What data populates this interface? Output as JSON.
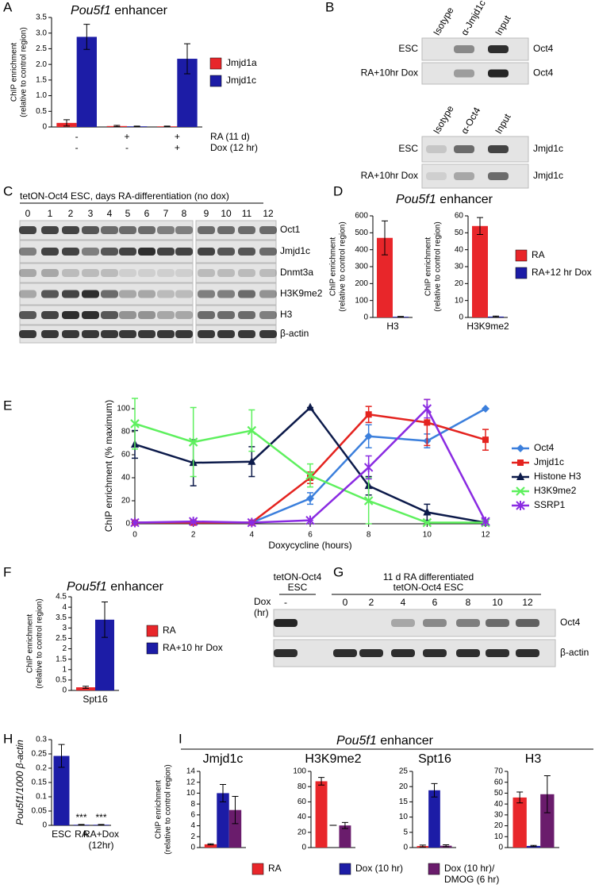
{
  "panel_letters": [
    "A",
    "B",
    "C",
    "D",
    "E",
    "F",
    "G",
    "H",
    "I"
  ],
  "blot_b1": {
    "lanes": [
      "Isotype",
      "α-Jmjd1c",
      "Input"
    ],
    "rows": [
      "ESC",
      "RA+10hr Dox"
    ],
    "proteins": [
      "Oct4",
      "Oct4"
    ]
  },
  "blot_b2": {
    "lanes": [
      "Isotype",
      "α-Oct4",
      "Input"
    ],
    "rows": [
      "ESC",
      "RA+10hr Dox"
    ],
    "proteins": [
      "Jmjd1c",
      "Jmjd1c"
    ]
  },
  "blot_c": {
    "title": "tetON-Oct4 ESC, days RA-differentiation (no dox)",
    "lanes": [
      "0",
      "1",
      "2",
      "3",
      "4",
      "5",
      "6",
      "7",
      "8",
      "9",
      "10",
      "11",
      "12"
    ],
    "proteins": [
      "Oct1",
      "Jmjd1c",
      "Dnmt3a",
      "H3K9me2",
      "H3",
      "β-actin"
    ]
  },
  "blot_g": {
    "header_left": "tetON-Oct4",
    "header_left_sub": "ESC",
    "header_right": "11 d RA differentiated",
    "header_right_sub": "tetON-Oct4 ESC",
    "dox_label": "Dox",
    "dox_unit": "(hr)",
    "lanes": [
      "-",
      "0",
      "2",
      "4",
      "6",
      "8",
      "10",
      "12"
    ],
    "proteins": [
      "Oct4",
      "β-actin"
    ]
  },
  "chart_data": [
    {
      "type": "bar",
      "title": "Pou5f1 enhancer",
      "ylabel": [
        "ChIP enrichment",
        "(relative to control region)"
      ],
      "categories": [
        null,
        null,
        null
      ],
      "conditions": [
        {
          "label": "RA (11 d)",
          "signs": [
            "-",
            "+",
            "+"
          ]
        },
        {
          "label": "Dox (12 hr)",
          "signs": [
            "-",
            "-",
            "+"
          ]
        }
      ],
      "series": [
        {
          "name": "Jmjd1a",
          "color": "#e8262a",
          "values": [
            0.13,
            0.03,
            0.02
          ],
          "errors": [
            0.1,
            0.02,
            0.01
          ]
        },
        {
          "name": "Jmjd1c",
          "color": "#1c1ca6",
          "values": [
            2.88,
            0.02,
            2.18
          ],
          "errors": [
            0.4,
            0.01,
            0.48
          ]
        }
      ],
      "ylim": [
        0,
        3.5
      ],
      "yticks": [
        0,
        0.5,
        {
          "value": 1,
          "label": "1.0"
        },
        1.5,
        {
          "value": 2,
          "label": "2.0"
        },
        2.5,
        {
          "value": 3,
          "label": "3.0"
        },
        3.5
      ]
    },
    {
      "type": "bar",
      "title": "Pou5f1 enhancer",
      "ylabel": [
        "ChIP enrichment",
        "(relative to control region)"
      ],
      "categories": [
        "H3"
      ],
      "series": [
        {
          "name": "RA",
          "color": "#e8262a",
          "values": [
            470
          ],
          "errors": [
            100
          ]
        },
        {
          "name": "RA+12 hr Dox",
          "color": "#1c1ca6",
          "values": [
            4
          ],
          "errors": [
            2
          ]
        }
      ],
      "ylim": [
        0,
        600
      ],
      "yticks": [
        0,
        100,
        200,
        300,
        400,
        500,
        600
      ]
    },
    {
      "type": "bar",
      "ylabel": [
        "ChIP enrichment",
        "(relative to control region)"
      ],
      "categories": [
        "H3K9me2"
      ],
      "series": [
        {
          "color": "#e8262a",
          "values": [
            54
          ],
          "errors": [
            5
          ]
        },
        {
          "color": "#1c1ca6",
          "values": [
            0.5
          ],
          "errors": [
            0.3
          ]
        }
      ],
      "ylim": [
        0,
        60
      ],
      "yticks": [
        0,
        10,
        20,
        30,
        40,
        50,
        60
      ]
    },
    {
      "type": "line",
      "ylabel": "ChIP enrichment (% maximum)",
      "xlabel": "Doxycycline (hours)",
      "x": [
        0,
        2,
        4,
        6,
        8,
        10,
        12
      ],
      "series": [
        {
          "name": "Oct4",
          "color": "#3b7fdc",
          "marker": "diamond",
          "values": [
            1,
            1,
            1,
            22,
            76,
            72,
            100
          ],
          "errors": [
            0,
            0,
            0,
            5,
            10,
            6,
            0
          ]
        },
        {
          "name": "Jmjd1c",
          "color": "#e4231f",
          "marker": "square",
          "values": [
            1,
            1,
            1,
            40,
            95,
            88,
            73
          ],
          "errors": [
            0,
            0,
            0,
            5,
            7,
            20,
            9
          ]
        },
        {
          "name": "Histone H3",
          "color": "#0c1a4a",
          "marker": "triangle",
          "values": [
            69,
            53,
            54,
            101,
            33,
            10,
            1
          ],
          "errors": [
            12,
            20,
            13,
            0,
            8,
            7,
            0
          ]
        },
        {
          "name": "H3K9me2",
          "color": "#5ef05e",
          "marker": "x",
          "values": [
            87,
            71,
            81,
            42,
            20,
            1,
            1
          ],
          "errors": [
            22,
            30,
            18,
            10,
            20,
            0,
            0
          ]
        },
        {
          "name": "SSRP1",
          "color": "#8a2be2",
          "marker": "star",
          "values": [
            1,
            2,
            1,
            3,
            49,
            100,
            2
          ],
          "errors": [
            0,
            0,
            0,
            0,
            10,
            8,
            0
          ]
        }
      ],
      "xlim": [
        0,
        12
      ],
      "xticks": [
        0,
        2,
        4,
        6,
        8,
        10,
        12
      ],
      "ylim": [
        0,
        100
      ],
      "yticks": [
        0,
        20,
        40,
        60,
        80,
        100
      ]
    },
    {
      "type": "bar",
      "title": "Pou5f1 enhancer",
      "ylabel": [
        "ChIP enrichment",
        "(relative to control region)"
      ],
      "categories": [
        "Spt16"
      ],
      "series": [
        {
          "name": "RA",
          "color": "#e8262a",
          "values": [
            0.15
          ],
          "errors": [
            0.05
          ]
        },
        {
          "name": "RA+10 hr Dox",
          "color": "#1c1ca6",
          "values": [
            3.4
          ],
          "errors": [
            0.85
          ]
        }
      ],
      "ylim": [
        0,
        4.5
      ],
      "yticks": [
        0,
        0.5,
        1,
        1.5,
        2,
        2.5,
        3,
        3.5,
        4,
        4.5
      ]
    },
    {
      "type": "bar",
      "ylabel": "Pou5f1/1000 β-actin",
      "categories": [
        "ESC",
        "RA",
        "RA+Dox\n(12hr)"
      ],
      "significance": [
        null,
        "***",
        "***"
      ],
      "series": [
        {
          "color": "#1c1ca6",
          "values": [
            0.243,
            0.002,
            0.002
          ],
          "errors": [
            0.04,
            0.001,
            0.001
          ]
        }
      ],
      "ylim": [
        0,
        0.3
      ],
      "yticks": [
        0,
        0.05,
        0.1,
        0.15,
        0.2,
        0.25,
        0.3
      ]
    },
    {
      "type": "bar",
      "title": "Pou5f1 enhancer",
      "subtitle": "Jmjd1c",
      "ylabel": [
        "ChIP enrichment",
        "(relative to control region)"
      ],
      "series": [
        {
          "name": "RA",
          "color": "#e8262a",
          "values": [
            0.6
          ],
          "errors": [
            0.1
          ]
        },
        {
          "name": "Dox (10 hr)",
          "color": "#1c1ca6",
          "values": [
            10
          ],
          "errors": [
            1.6
          ]
        },
        {
          "name": "Dox (10 hr)/\nDMOG (6 hr)",
          "color": "#6a1c6c",
          "values": [
            6.9
          ],
          "errors": [
            2.5
          ]
        }
      ],
      "ylim": [
        0,
        14
      ],
      "yticks": [
        0,
        2,
        4,
        6,
        8,
        10,
        12,
        14
      ]
    },
    {
      "type": "bar",
      "subtitle": "H3K9me2",
      "gap_label": "–",
      "series": [
        {
          "color": "#e8262a",
          "values": [
            87
          ],
          "errors": [
            5
          ]
        },
        {
          "color": "#1c1ca6",
          "values": [
            null
          ],
          "errors": [
            null
          ]
        },
        {
          "color": "#6a1c6c",
          "values": [
            29
          ],
          "errors": [
            4
          ]
        }
      ],
      "ylim": [
        0,
        100
      ],
      "yticks": [
        0,
        20,
        40,
        60,
        80,
        100
      ]
    },
    {
      "type": "bar",
      "subtitle": "Spt16",
      "series": [
        {
          "color": "#e8262a",
          "values": [
            0.5
          ],
          "errors": [
            0.3
          ]
        },
        {
          "color": "#1c1ca6",
          "values": [
            18.8
          ],
          "errors": [
            2.2
          ]
        },
        {
          "color": "#6a1c6c",
          "values": [
            0.6
          ],
          "errors": [
            0.3
          ]
        }
      ],
      "ylim": [
        0,
        25
      ],
      "yticks": [
        0,
        5,
        10,
        15,
        20,
        25
      ]
    },
    {
      "type": "bar",
      "subtitle": "H3",
      "series": [
        {
          "color": "#e8262a",
          "values": [
            46
          ],
          "errors": [
            5
          ]
        },
        {
          "color": "#1c1ca6",
          "values": [
            1.5
          ],
          "errors": [
            0.5
          ]
        },
        {
          "color": "#6a1c6c",
          "values": [
            49
          ],
          "errors": [
            17
          ]
        }
      ],
      "ylim": [
        0,
        70
      ],
      "yticks": [
        0,
        10,
        20,
        30,
        40,
        50,
        60,
        70
      ]
    }
  ]
}
